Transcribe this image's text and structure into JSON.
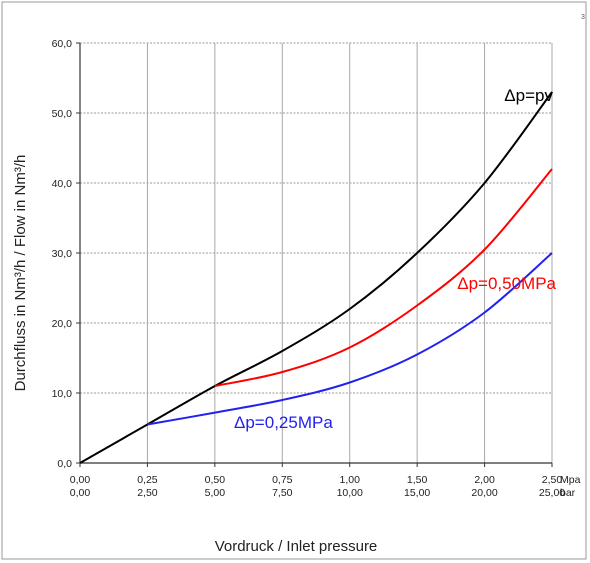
{
  "chart_data": {
    "type": "line",
    "xlabel": "Vordruck / Inlet pressure",
    "ylabel": "Durchfluss in Nm³/h  / Flow in Nm³/h",
    "ylim": [
      0,
      60
    ],
    "xlim": [
      0,
      2.5
    ],
    "grid": true,
    "x_categories": [
      0.0,
      0.25,
      0.5,
      0.75,
      1.0,
      1.5,
      2.0,
      2.5
    ],
    "x_ticks_mpa": [
      "0,00",
      "0,25",
      "0,50",
      "0,75",
      "1,00",
      "1,50",
      "2,00",
      "2,50"
    ],
    "x_ticks_bar": [
      "0,00",
      "2,50",
      "5,00",
      "7,50",
      "10,00",
      "15,00",
      "20,00",
      "25,00"
    ],
    "x_unit_mpa": "Mpa",
    "x_unit_bar": "bar",
    "y_ticks": [
      "0,0",
      "10,0",
      "20,0",
      "30,0",
      "40,0",
      "50,0",
      "60,0"
    ],
    "corner_mark": "3",
    "series": [
      {
        "name": "Δp=pv",
        "color": "#000000",
        "x": [
          0.0,
          0.25,
          0.5,
          0.75,
          1.0,
          1.5,
          2.0,
          2.5
        ],
        "y": [
          0.0,
          5.5,
          11.0,
          16.0,
          22.0,
          30.0,
          40.0,
          53.0
        ]
      },
      {
        "name": "Δp=0,50MPa",
        "color": "#ff0000",
        "x": [
          0.5,
          0.75,
          1.0,
          1.5,
          2.0,
          2.5
        ],
        "y": [
          11.0,
          13.0,
          16.5,
          22.5,
          30.5,
          42.0
        ]
      },
      {
        "name": "Δp=0,25MPa",
        "color": "#2222ee",
        "x": [
          0.25,
          0.5,
          0.75,
          1.0,
          1.5,
          2.0,
          2.5
        ],
        "y": [
          5.5,
          7.2,
          9.0,
          11.5,
          15.5,
          21.5,
          30.0
        ]
      }
    ]
  }
}
